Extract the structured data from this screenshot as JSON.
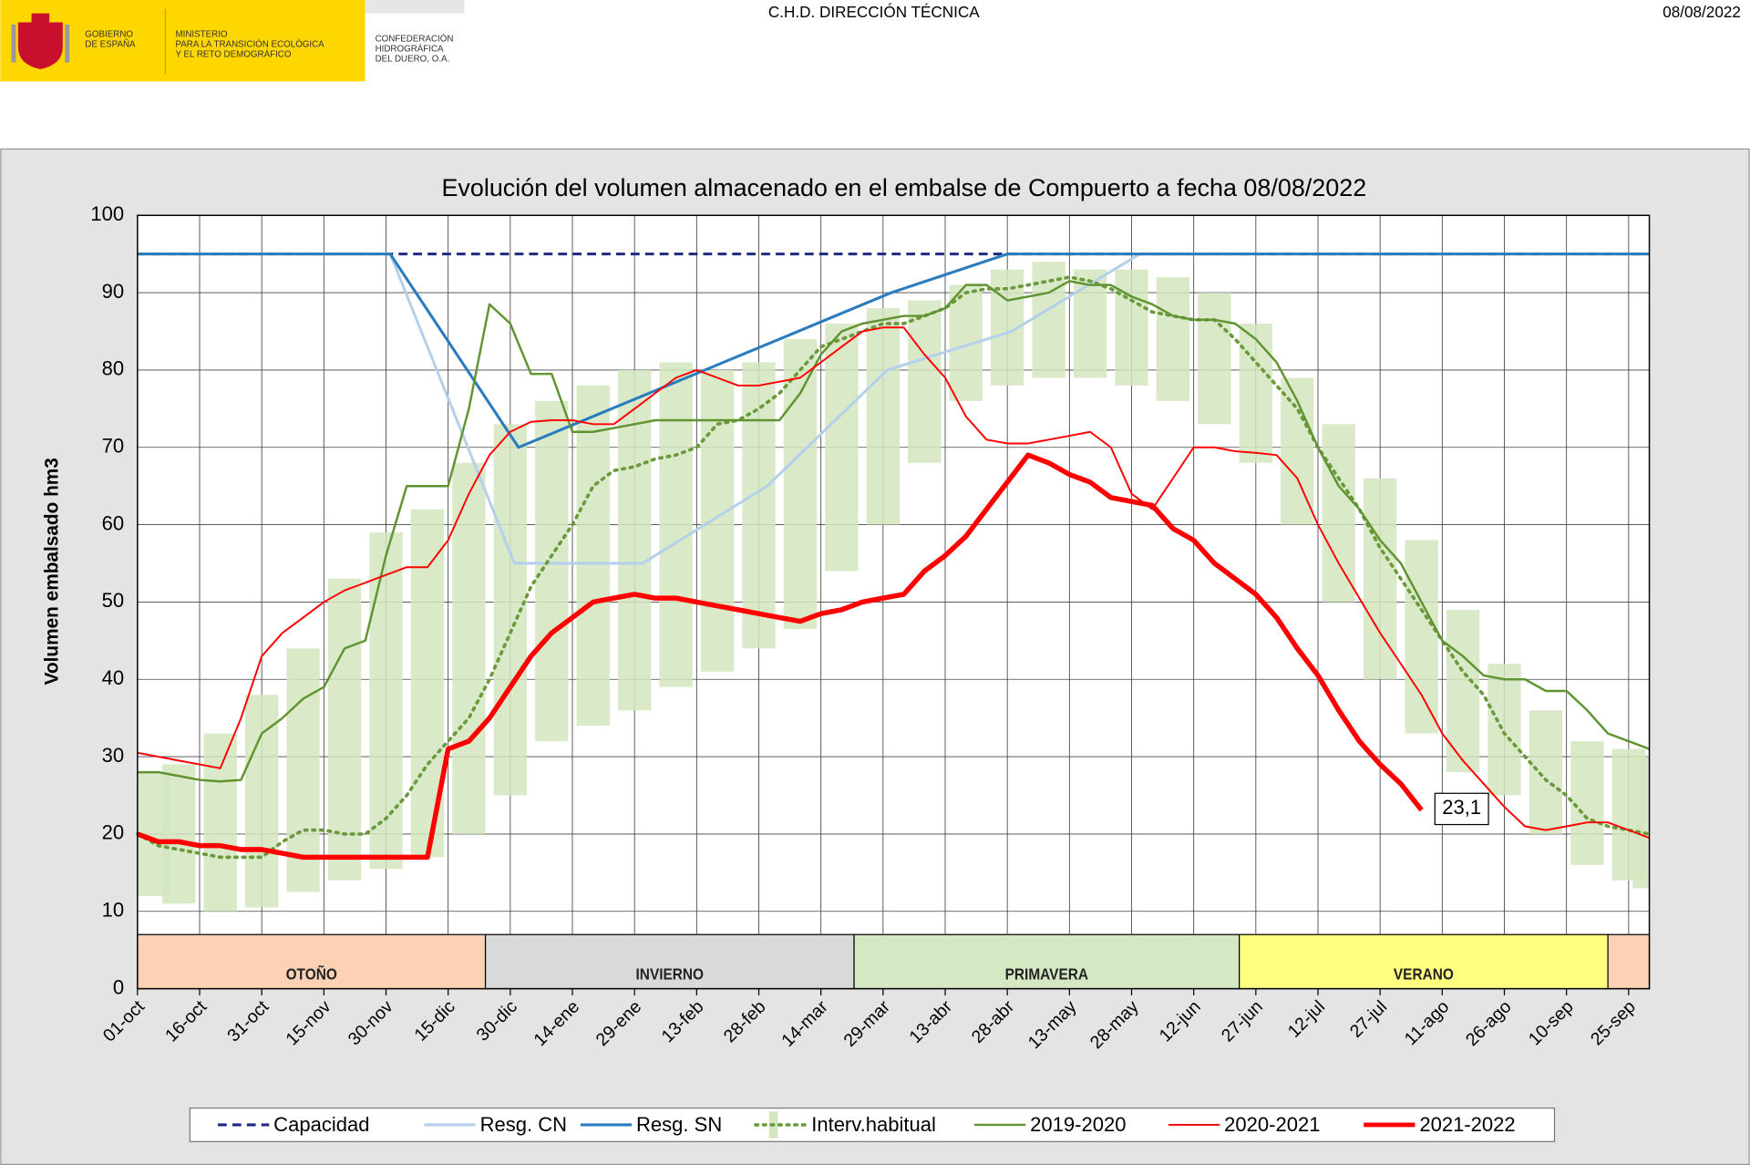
{
  "header": {
    "gobierno": [
      "GOBIERNO",
      "DE ESPAÑA"
    ],
    "ministerio": [
      "MINISTERIO",
      "PARA LA TRANSICIÓN ECOLÓGICA",
      "Y EL RETO DEMOGRÁFICO"
    ],
    "confederacion": [
      "CONFEDERACIÓN",
      "HIDROGRÁFICA",
      "DEL DUERO, O.A."
    ],
    "center": "C.H.D. DIRECCIÓN TÉCNICA",
    "date": "08/08/2022"
  },
  "chart_data": {
    "type": "line",
    "title": "Evolución del volumen almacenado en el embalse de Compuerto a fecha 08/08/2022",
    "y_label": "Volumen embalsado hm3",
    "xlim": [
      0,
      365
    ],
    "ylim": [
      0,
      100
    ],
    "yticks": [
      0,
      10,
      20,
      30,
      40,
      50,
      60,
      70,
      80,
      90,
      100
    ],
    "xticks": [
      {
        "value": 0,
        "label": "01-oct"
      },
      {
        "value": 15,
        "label": "16-oct"
      },
      {
        "value": 30,
        "label": "31-oct"
      },
      {
        "value": 45,
        "label": "15-nov"
      },
      {
        "value": 60,
        "label": "30-nov"
      },
      {
        "value": 75,
        "label": "15-dic"
      },
      {
        "value": 90,
        "label": "30-dic"
      },
      {
        "value": 105,
        "label": "14-ene"
      },
      {
        "value": 120,
        "label": "29-ene"
      },
      {
        "value": 135,
        "label": "13-feb"
      },
      {
        "value": 150,
        "label": "28-feb"
      },
      {
        "value": 165,
        "label": "14-mar"
      },
      {
        "value": 180,
        "label": "29-mar"
      },
      {
        "value": 195,
        "label": "13-abr"
      },
      {
        "value": 210,
        "label": "28-abr"
      },
      {
        "value": 225,
        "label": "13-may"
      },
      {
        "value": 240,
        "label": "28-may"
      },
      {
        "value": 255,
        "label": "12-jun"
      },
      {
        "value": 270,
        "label": "27-jun"
      },
      {
        "value": 285,
        "label": "12-jul"
      },
      {
        "value": 300,
        "label": "27-jul"
      },
      {
        "value": 315,
        "label": "11-ago"
      },
      {
        "value": 330,
        "label": "26-ago"
      },
      {
        "value": 345,
        "label": "10-sep"
      },
      {
        "value": 360,
        "label": "25-sep"
      }
    ],
    "grid": true,
    "seasons": [
      {
        "label": "OTOÑO",
        "start": 0,
        "end": 84,
        "top": 7,
        "color": "#fdd2b4"
      },
      {
        "label": "INVIERNO",
        "start": 84,
        "end": 173,
        "top": 7,
        "color": "#d9d9d9"
      },
      {
        "label": "PRIMAVERA",
        "start": 173,
        "end": 266,
        "top": 7,
        "color": "#d5e8c4"
      },
      {
        "label": "VERANO",
        "start": 266,
        "end": 355,
        "top": 7,
        "color": "#ffff80"
      },
      {
        "label": null,
        "start": 355,
        "end": 365,
        "top": 7,
        "color": "#fdd2b4"
      }
    ],
    "x": [
      0,
      5,
      10,
      15,
      20,
      25,
      30,
      35,
      40,
      45,
      50,
      55,
      60,
      65,
      70,
      75,
      80,
      85,
      90,
      95,
      100,
      105,
      110,
      115,
      120,
      125,
      130,
      135,
      140,
      145,
      150,
      155,
      160,
      165,
      170,
      175,
      180,
      185,
      190,
      195,
      200,
      205,
      210,
      215,
      220,
      225,
      230,
      235,
      240,
      245,
      250,
      255,
      260,
      265,
      270,
      275,
      280,
      285,
      290,
      295,
      300,
      305,
      310,
      315,
      320,
      325,
      330,
      335,
      340,
      345,
      350,
      355,
      360,
      365
    ],
    "series": [
      {
        "name": "Capacidad",
        "color": "#1f2a80",
        "width": 2.5,
        "dash": "dashed",
        "x": [
          0,
          365
        ],
        "values": [
          95,
          95
        ]
      },
      {
        "name": "Resg. CN",
        "color": "#b4d0ea",
        "width": 2.5,
        "dash": null,
        "x": [
          0,
          61,
          91,
          122,
          152,
          181,
          211,
          242,
          365
        ],
        "values": [
          95,
          95,
          55,
          55,
          65,
          80,
          85,
          95,
          95
        ]
      },
      {
        "name": "Resg. SN",
        "color": "#2b7cbf",
        "width": 2.5,
        "dash": null,
        "x": [
          0,
          61,
          92,
          182,
          210,
          365
        ],
        "values": [
          95,
          95,
          70,
          90,
          95,
          95
        ]
      },
      {
        "name": "Interv.habitual",
        "color": "#6a9a3c",
        "width": 3,
        "dash": "dotted",
        "band_color": "#d4e6c0",
        "band": {
          "x": [
            0,
            10,
            20,
            30,
            40,
            50,
            60,
            70,
            80,
            90,
            100,
            110,
            120,
            130,
            140,
            150,
            160,
            170,
            180,
            190,
            200,
            210,
            220,
            230,
            240,
            250,
            260,
            270,
            280,
            290,
            300,
            310,
            320,
            330,
            340,
            350,
            360,
            365
          ],
          "low": [
            12,
            11,
            10,
            10.5,
            12.5,
            14,
            15.5,
            17,
            20,
            25,
            32,
            34,
            36,
            39,
            41,
            44,
            46.5,
            54,
            60,
            68,
            76,
            78,
            79,
            79,
            78,
            76,
            73,
            68,
            60,
            50,
            40,
            33,
            28,
            25,
            20,
            16,
            14,
            13
          ],
          "high": [
            28,
            29,
            33,
            38,
            44,
            53,
            59,
            62,
            68,
            73,
            76,
            78,
            80,
            81,
            80,
            81,
            84,
            86,
            88,
            89,
            91,
            93,
            94,
            93,
            93,
            92,
            90,
            86,
            79,
            73,
            66,
            58,
            49,
            42,
            36,
            32,
            31,
            30
          ]
        },
        "values": [
          20,
          18.5,
          18,
          17.5,
          17,
          17,
          17,
          19,
          20.5,
          20.5,
          20,
          20,
          22,
          25,
          29,
          32,
          35,
          40,
          46,
          52,
          56,
          60,
          65,
          67,
          67.5,
          68.5,
          69,
          70,
          73,
          73.5,
          75,
          77,
          80,
          83,
          84,
          85,
          86,
          86,
          87,
          88,
          90,
          90.5,
          90.5,
          91,
          91.5,
          92,
          91.5,
          90.5,
          89,
          87.5,
          87,
          86.5,
          86.5,
          84,
          81,
          78,
          75,
          70,
          66,
          62,
          57,
          53,
          49,
          45,
          41,
          38,
          33,
          30,
          27,
          25,
          22,
          21,
          20.5,
          20
        ]
      },
      {
        "name": "2019-2020",
        "color": "#5f9431",
        "width": 2,
        "dash": null,
        "values": [
          28,
          28,
          27.5,
          27,
          26.8,
          27,
          33,
          35,
          37.5,
          39,
          44,
          45,
          56,
          65,
          65,
          65,
          75,
          88.5,
          86,
          79.5,
          79.5,
          72,
          72,
          72.5,
          73,
          73.5,
          73.5,
          73.5,
          73.5,
          73.5,
          73.5,
          73.5,
          77,
          82,
          85,
          86,
          86.5,
          87,
          87,
          88,
          91,
          91,
          89,
          89.5,
          90,
          91.5,
          91,
          91,
          89.5,
          88.5,
          87,
          86.5,
          86.5,
          86,
          84,
          81,
          76,
          70,
          65,
          62,
          58,
          55,
          50,
          45,
          43,
          40.5,
          40,
          40,
          38.5,
          38.5,
          36,
          33,
          32,
          31
        ]
      },
      {
        "name": "2020-2021",
        "color": "#ff0000",
        "width": 1.6,
        "dash": null,
        "values": [
          30.5,
          30,
          29.5,
          29,
          28.5,
          35,
          43,
          46,
          48,
          50,
          51.5,
          52.5,
          53.5,
          54.5,
          54.5,
          58,
          64,
          69,
          72,
          73.3,
          73.5,
          73.5,
          73,
          73,
          75,
          77,
          79,
          80,
          79,
          78,
          78,
          78.5,
          79,
          81,
          83,
          85,
          85.5,
          85.5,
          82,
          79,
          74,
          71,
          70.5,
          70.5,
          71,
          71.5,
          72,
          70,
          64,
          62,
          66,
          70,
          70,
          69.5,
          69.3,
          69,
          66,
          60,
          55,
          50.5,
          46,
          42,
          38,
          33,
          29.5,
          26.5,
          23.5,
          21,
          20.5,
          21,
          21.5,
          21.5,
          20.5,
          19.5
        ]
      },
      {
        "name": "2021-2022",
        "color": "#ff0000",
        "width": 4.5,
        "dash": null,
        "values": [
          20,
          19,
          19,
          18.5,
          18.5,
          18,
          18,
          17.5,
          17,
          17,
          17,
          17,
          17,
          17,
          17,
          31,
          32,
          35,
          39,
          43,
          46,
          48,
          50,
          50.5,
          51,
          50.5,
          50.5,
          50,
          49.5,
          49,
          48.5,
          48,
          47.5,
          48.5,
          49,
          50,
          50.5,
          51,
          54,
          56,
          58.5,
          62,
          65.5,
          69,
          68,
          66.5,
          65.5,
          63.5,
          63,
          62.5,
          59.5,
          58,
          55,
          53,
          51,
          48,
          44,
          40.5,
          36,
          32,
          29,
          26.5,
          23.1,
          null,
          null,
          null,
          null,
          null,
          null,
          null,
          null,
          null,
          null,
          null
        ]
      }
    ],
    "annotations": [
      {
        "x": 310,
        "value": 23.1,
        "label": "23,1"
      }
    ]
  }
}
